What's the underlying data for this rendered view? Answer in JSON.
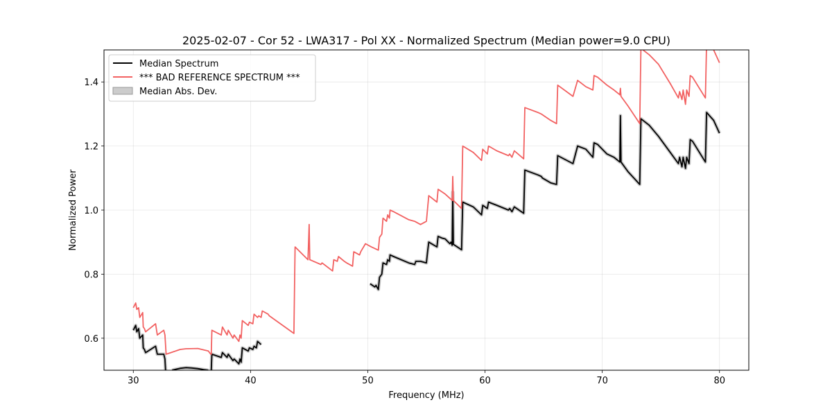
{
  "chart_data": {
    "type": "line",
    "title": "2025-02-07 - Cor 52 - LWA317 - Pol XX - Normalized Spectrum (Median power=9.0 CPU)",
    "xlabel": "Frequency (MHz)",
    "ylabel": "Normalized Power",
    "xlim": [
      27.5,
      82.5
    ],
    "ylim": [
      0.5,
      1.5
    ],
    "xticks": [
      30,
      40,
      50,
      60,
      70,
      80
    ],
    "yticks": [
      0.6,
      0.8,
      1.0,
      1.2,
      1.4
    ],
    "xtick_labels": [
      "30",
      "40",
      "50",
      "60",
      "70",
      "80"
    ],
    "ytick_labels": [
      "0.6",
      "0.8",
      "1.0",
      "1.2",
      "1.4"
    ],
    "grid": true,
    "legend_position": "upper-left",
    "legend": [
      "Median Spectrum",
      "*** BAD REFERENCE SPECTRUM ***",
      "Median Abs. Dev."
    ],
    "colors": {
      "median": "#000000",
      "reference": "#f26161",
      "mad": "#b3b3b3"
    },
    "series": [
      {
        "name": "Median Spectrum",
        "segments": [
          [
            [
              30.0,
              0.625
            ],
            [
              30.2,
              0.64
            ],
            [
              30.3,
              0.62
            ],
            [
              30.45,
              0.63
            ],
            [
              30.55,
              0.6
            ],
            [
              30.8,
              0.61
            ],
            [
              30.85,
              0.57
            ],
            [
              30.95,
              0.565
            ],
            [
              31.05,
              0.555
            ],
            [
              31.9,
              0.575
            ],
            [
              32.05,
              0.55
            ],
            [
              32.6,
              0.55
            ],
            [
              32.7,
              0.535
            ],
            [
              32.75,
              0.5
            ]
          ],
          [
            [
              33.3,
              0.5
            ],
            [
              33.5,
              0.502
            ],
            [
              34.0,
              0.506
            ],
            [
              34.5,
              0.508
            ],
            [
              35.0,
              0.507
            ],
            [
              35.5,
              0.505
            ],
            [
              36.0,
              0.502
            ],
            [
              36.4,
              0.5
            ]
          ],
          [
            [
              36.65,
              0.5
            ],
            [
              36.7,
              0.55
            ],
            [
              37.5,
              0.54
            ],
            [
              37.6,
              0.555
            ],
            [
              38.0,
              0.54
            ],
            [
              38.1,
              0.55
            ],
            [
              38.5,
              0.53
            ],
            [
              38.6,
              0.535
            ],
            [
              39.0,
              0.52
            ],
            [
              39.1,
              0.535
            ],
            [
              39.2,
              0.525
            ],
            [
              39.3,
              0.57
            ],
            [
              39.8,
              0.56
            ],
            [
              39.9,
              0.57
            ],
            [
              40.2,
              0.565
            ],
            [
              40.3,
              0.575
            ],
            [
              40.5,
              0.57
            ],
            [
              40.6,
              0.59
            ],
            [
              40.9,
              0.58
            ]
          ],
          [
            [
              50.2,
              0.77
            ],
            [
              50.6,
              0.76
            ],
            [
              50.7,
              0.765
            ],
            [
              50.9,
              0.752
            ],
            [
              51.0,
              0.79
            ],
            [
              51.2,
              0.8
            ],
            [
              51.3,
              0.835
            ],
            [
              51.6,
              0.83
            ],
            [
              51.7,
              0.845
            ],
            [
              51.85,
              0.84
            ],
            [
              51.9,
              0.86
            ],
            [
              52.2,
              0.855
            ],
            [
              53.5,
              0.835
            ],
            [
              54.0,
              0.83
            ],
            [
              54.1,
              0.84
            ],
            [
              54.4,
              0.84
            ],
            [
              54.5,
              0.84
            ],
            [
              55.0,
              0.835
            ],
            [
              55.1,
              0.87
            ],
            [
              55.2,
              0.9
            ],
            [
              55.9,
              0.885
            ],
            [
              56.0,
              0.918
            ],
            [
              56.3,
              0.913
            ],
            [
              56.6,
              0.91
            ],
            [
              57.0,
              0.895
            ],
            [
              57.1,
              0.9
            ],
            [
              57.2,
              0.89
            ],
            [
              57.25,
              1.056
            ],
            [
              57.3,
              0.893
            ],
            [
              58.0,
              0.876
            ],
            [
              58.1,
              1.025
            ],
            [
              59.0,
              1.01
            ],
            [
              59.7,
              0.985
            ],
            [
              59.8,
              1.015
            ],
            [
              60.2,
              1.005
            ],
            [
              60.3,
              1.025
            ],
            [
              61.0,
              1.015
            ],
            [
              62.0,
              1.0
            ],
            [
              62.1,
              1.005
            ],
            [
              62.3,
              0.995
            ],
            [
              62.5,
              1.01
            ],
            [
              63.3,
              0.99
            ],
            [
              63.4,
              1.125
            ],
            [
              64.5,
              1.11
            ],
            [
              64.8,
              1.105
            ],
            [
              64.9,
              1.1
            ],
            [
              65.6,
              1.085
            ],
            [
              66.1,
              1.08
            ],
            [
              66.2,
              1.17
            ],
            [
              67.5,
              1.145
            ],
            [
              67.9,
              1.2
            ],
            [
              68.6,
              1.19
            ],
            [
              69.2,
              1.165
            ],
            [
              69.3,
              1.21
            ],
            [
              69.6,
              1.205
            ],
            [
              70.4,
              1.175
            ],
            [
              71.0,
              1.165
            ],
            [
              71.5,
              1.15
            ],
            [
              71.55,
              1.295
            ],
            [
              71.6,
              1.15
            ],
            [
              72.2,
              1.12
            ],
            [
              73.2,
              1.08
            ],
            [
              73.3,
              1.285
            ],
            [
              74.0,
              1.265
            ],
            [
              74.8,
              1.23
            ],
            [
              75.8,
              1.18
            ],
            [
              76.5,
              1.145
            ],
            [
              76.6,
              1.165
            ],
            [
              76.8,
              1.135
            ],
            [
              76.9,
              1.165
            ],
            [
              77.1,
              1.13
            ],
            [
              77.2,
              1.165
            ],
            [
              77.4,
              1.145
            ],
            [
              77.5,
              1.22
            ],
            [
              77.7,
              1.215
            ],
            [
              78.8,
              1.15
            ],
            [
              78.9,
              1.305
            ],
            [
              79.5,
              1.28
            ],
            [
              80.0,
              1.24
            ]
          ]
        ]
      },
      {
        "name": "*** BAD REFERENCE SPECTRUM ***",
        "segments": [
          [
            [
              30.0,
              0.695
            ],
            [
              30.2,
              0.71
            ],
            [
              30.3,
              0.69
            ],
            [
              30.45,
              0.695
            ],
            [
              30.55,
              0.665
            ],
            [
              30.8,
              0.68
            ],
            [
              30.85,
              0.635
            ],
            [
              30.95,
              0.63
            ],
            [
              31.05,
              0.62
            ],
            [
              31.9,
              0.645
            ],
            [
              32.05,
              0.61
            ],
            [
              32.6,
              0.625
            ],
            [
              32.7,
              0.61
            ],
            [
              32.8,
              0.55
            ],
            [
              33.2,
              0.555
            ],
            [
              34.0,
              0.565
            ],
            [
              34.5,
              0.567
            ],
            [
              35.5,
              0.568
            ],
            [
              36.4,
              0.56
            ],
            [
              36.6,
              0.55
            ],
            [
              36.65,
              0.55
            ],
            [
              36.7,
              0.625
            ],
            [
              37.5,
              0.61
            ],
            [
              37.6,
              0.635
            ],
            [
              38.0,
              0.61
            ],
            [
              38.1,
              0.625
            ],
            [
              38.5,
              0.6
            ],
            [
              38.6,
              0.61
            ],
            [
              39.0,
              0.59
            ],
            [
              39.1,
              0.61
            ],
            [
              39.2,
              0.6
            ],
            [
              39.3,
              0.655
            ],
            [
              39.8,
              0.64
            ],
            [
              39.9,
              0.65
            ],
            [
              40.2,
              0.645
            ],
            [
              40.3,
              0.675
            ],
            [
              40.6,
              0.665
            ],
            [
              40.7,
              0.67
            ],
            [
              40.9,
              0.665
            ],
            [
              41.0,
              0.685
            ],
            [
              41.5,
              0.675
            ],
            [
              41.6,
              0.67
            ],
            [
              43.7,
              0.615
            ],
            [
              43.8,
              0.885
            ],
            [
              44.9,
              0.845
            ],
            [
              45.0,
              0.955
            ],
            [
              45.05,
              0.845
            ],
            [
              46.0,
              0.83
            ],
            [
              46.1,
              0.835
            ],
            [
              47.0,
              0.81
            ],
            [
              47.1,
              0.845
            ],
            [
              47.4,
              0.84
            ],
            [
              47.5,
              0.855
            ],
            [
              48.0,
              0.84
            ],
            [
              48.2,
              0.835
            ],
            [
              48.7,
              0.825
            ],
            [
              48.8,
              0.87
            ],
            [
              49.3,
              0.86
            ],
            [
              49.4,
              0.87
            ],
            [
              49.8,
              0.895
            ],
            [
              50.3,
              0.885
            ],
            [
              50.9,
              0.875
            ],
            [
              51.0,
              0.915
            ],
            [
              51.2,
              0.925
            ],
            [
              51.3,
              0.975
            ],
            [
              51.6,
              0.965
            ],
            [
              51.7,
              0.985
            ],
            [
              51.85,
              0.975
            ],
            [
              51.9,
              1.0
            ],
            [
              52.2,
              0.995
            ],
            [
              53.5,
              0.97
            ],
            [
              54.0,
              0.965
            ],
            [
              54.5,
              0.955
            ],
            [
              55.0,
              0.965
            ],
            [
              55.1,
              1.005
            ],
            [
              55.2,
              1.045
            ],
            [
              55.9,
              1.025
            ],
            [
              56.0,
              1.065
            ],
            [
              56.6,
              1.05
            ],
            [
              57.2,
              1.03
            ],
            [
              57.25,
              1.105
            ],
            [
              57.3,
              1.03
            ],
            [
              58.0,
              1.005
            ],
            [
              58.1,
              1.2
            ],
            [
              59.0,
              1.18
            ],
            [
              59.7,
              1.155
            ],
            [
              59.8,
              1.19
            ],
            [
              60.2,
              1.175
            ],
            [
              60.3,
              1.2
            ],
            [
              61.0,
              1.185
            ],
            [
              62.0,
              1.17
            ],
            [
              62.1,
              1.175
            ],
            [
              62.3,
              1.165
            ],
            [
              62.5,
              1.185
            ],
            [
              63.3,
              1.16
            ],
            [
              63.4,
              1.32
            ],
            [
              64.5,
              1.305
            ],
            [
              64.8,
              1.3
            ],
            [
              65.6,
              1.28
            ],
            [
              66.1,
              1.27
            ],
            [
              66.2,
              1.39
            ],
            [
              67.5,
              1.355
            ],
            [
              67.9,
              1.405
            ],
            [
              68.6,
              1.385
            ],
            [
              69.2,
              1.375
            ],
            [
              69.3,
              1.42
            ],
            [
              69.6,
              1.415
            ],
            [
              70.4,
              1.39
            ],
            [
              71.0,
              1.375
            ],
            [
              71.5,
              1.36
            ],
            [
              71.55,
              1.38
            ],
            [
              71.6,
              1.355
            ],
            [
              72.2,
              1.325
            ],
            [
              73.2,
              1.27
            ],
            [
              73.3,
              1.505
            ],
            [
              74.0,
              1.485
            ],
            [
              74.8,
              1.455
            ],
            [
              75.8,
              1.395
            ],
            [
              76.5,
              1.35
            ],
            [
              76.6,
              1.37
            ],
            [
              76.8,
              1.345
            ],
            [
              76.9,
              1.375
            ],
            [
              77.1,
              1.33
            ],
            [
              77.2,
              1.375
            ],
            [
              77.4,
              1.355
            ],
            [
              77.5,
              1.42
            ],
            [
              77.7,
              1.415
            ],
            [
              78.8,
              1.35
            ],
            [
              78.9,
              1.52
            ],
            [
              79.5,
              1.5
            ],
            [
              80.0,
              1.46
            ]
          ]
        ]
      }
    ]
  }
}
